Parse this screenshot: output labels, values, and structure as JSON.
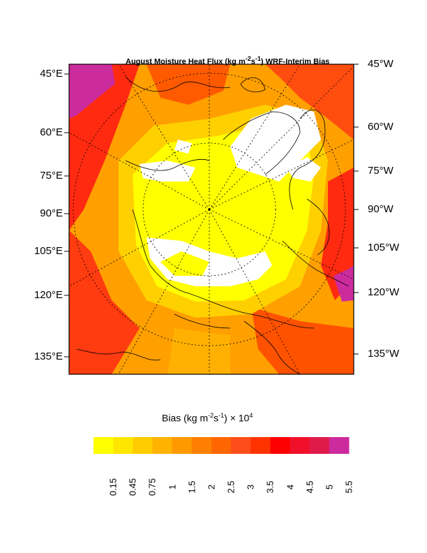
{
  "title": {
    "main": "August Moisture Heat Flux (kg m",
    "sup1": "-2",
    "mid": "s",
    "sup2": "-1",
    "end": ") WRF-Interim Bias"
  },
  "left_labels": [
    "45°E",
    "60°E",
    "75°E",
    "90°E",
    "105°E",
    "120°E",
    "135°E"
  ],
  "right_labels": [
    "45°W",
    "60°W",
    "75°W",
    "90°W",
    "105°W",
    "120°W",
    "135°W"
  ],
  "colorbar": {
    "title_pre": "Bias (kg m",
    "sup1": "-2",
    "mid": "s",
    "sup2": "-1",
    "title_post": ") × 10",
    "sup3": "4",
    "ticks": [
      "0.15",
      "0.45",
      "0.75",
      "1",
      "1.5",
      "2",
      "2.5",
      "3",
      "3.5",
      "4",
      "4.5",
      "5",
      "5.5"
    ],
    "colors": [
      "#ffff00",
      "#ffe600",
      "#ffcc00",
      "#ffb300",
      "#ff9900",
      "#ff8000",
      "#ff6600",
      "#ff4d1a",
      "#ff3300",
      "#ff0000",
      "#f0102a",
      "#e01a4a",
      "#cc2b9e"
    ]
  },
  "map": {
    "projection": "polar stereographic",
    "ice_color": "#ffffff",
    "background_color": "#ff9900"
  }
}
